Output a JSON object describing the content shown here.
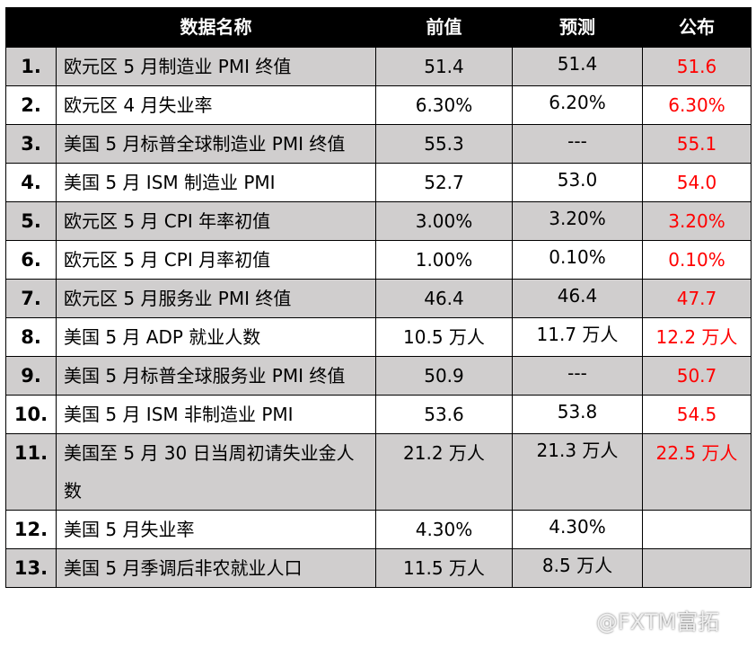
{
  "table": {
    "header": [
      "数据名称",
      "前值",
      "预测",
      "公布"
    ],
    "rows": [
      {
        "no": "1.",
        "name": "欧元区 5 月制造业 PMI 终值",
        "prev": "51.4",
        "forecast": "51.4",
        "actual": "51.6"
      },
      {
        "no": "2.",
        "name": "欧元区 4 月失业率",
        "prev": "6.30%",
        "forecast": "6.20%",
        "actual": "6.30%"
      },
      {
        "no": "3.",
        "name": "美国 5 月标普全球制造业 PMI 终值",
        "prev": "55.3",
        "forecast": "---",
        "actual": "55.1"
      },
      {
        "no": "4.",
        "name": "美国 5 月 ISM 制造业 PMI",
        "prev": "52.7",
        "forecast": "53.0",
        "actual": "54.0"
      },
      {
        "no": "5.",
        "name": "欧元区 5 月 CPI 年率初值",
        "prev": "3.00%",
        "forecast": "3.20%",
        "actual": "3.20%"
      },
      {
        "no": "6.",
        "name": "欧元区 5 月 CPI 月率初值",
        "prev": "1.00%",
        "forecast": "0.10%",
        "actual": "0.10%"
      },
      {
        "no": "7.",
        "name": "欧元区 5 月服务业 PMI 终值",
        "prev": "46.4",
        "forecast": "46.4",
        "actual": "47.7"
      },
      {
        "no": "8.",
        "name": "美国 5 月 ADP 就业人数",
        "prev": "10.5 万人",
        "forecast": "11.7 万人",
        "actual": "12.2 万人"
      },
      {
        "no": "9.",
        "name": "美国 5 月标普全球服务业 PMI 终值",
        "prev": "50.9",
        "forecast": "---",
        "actual": "50.7"
      },
      {
        "no": "10.",
        "name": "美国 5 月 ISM 非制造业 PMI",
        "prev": "53.6",
        "forecast": "53.8",
        "actual": "54.5"
      },
      {
        "no": "11.",
        "name": "美国至 5 月 30 日当周初请失业金人数",
        "prev": "21.2 万人",
        "forecast": "21.3 万人",
        "actual": "22.5 万人"
      },
      {
        "no": "12.",
        "name": "美国 5 月失业率",
        "prev": "4.30%",
        "forecast": "4.30%"
      },
      {
        "no": "13.",
        "name": "美国 5 月季调后非农就业人口",
        "prev": "11.5 万人",
        "forecast": "8.5 万人"
      }
    ]
  },
  "watermark": "@FXTM富拓"
}
